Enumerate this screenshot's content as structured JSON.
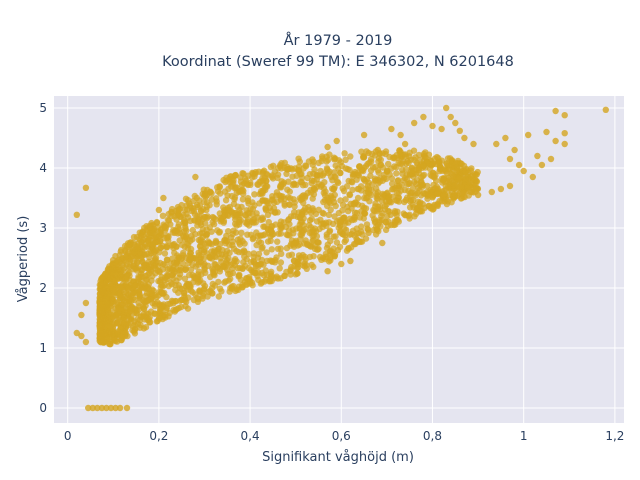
{
  "chart_data": {
    "type": "scatter",
    "title": "År 1979 - 2019",
    "subtitle": "Koordinat (Sweref 99 TM): E 346302, N 6201648",
    "xlabel": "Signifikant våghöjd (m)",
    "ylabel": "Vågperiod (s)",
    "xlim": [
      -0.03,
      1.22
    ],
    "ylim": [
      -0.25,
      5.2
    ],
    "x_ticks": [
      0,
      0.2,
      0.4,
      0.6,
      0.8,
      1,
      1.2
    ],
    "x_tick_labels": [
      "0",
      "0,2",
      "0,4",
      "0,6",
      "0,8",
      "1",
      "1,2"
    ],
    "y_ticks": [
      0,
      1,
      2,
      3,
      4,
      5
    ],
    "y_tick_labels": [
      "0",
      "1",
      "2",
      "3",
      "4",
      "5"
    ],
    "grid": true,
    "marker_color": "#d4a520",
    "plot_background": "#e5e5f0",
    "gridline_color": "#ffffff",
    "cloud_band": {
      "x": [
        0.07,
        0.1,
        0.15,
        0.2,
        0.25,
        0.3,
        0.35,
        0.4,
        0.45,
        0.5,
        0.55,
        0.6,
        0.65,
        0.7,
        0.75,
        0.8,
        0.85,
        0.9
      ],
      "low": [
        1.1,
        1.05,
        1.25,
        1.45,
        1.6,
        1.78,
        1.9,
        2.02,
        2.12,
        2.22,
        2.35,
        2.55,
        2.75,
        2.95,
        3.15,
        3.3,
        3.45,
        3.6
      ],
      "high": [
        2.1,
        2.5,
        2.9,
        3.2,
        3.45,
        3.65,
        3.85,
        3.95,
        4.05,
        4.15,
        4.2,
        4.25,
        4.28,
        4.3,
        4.3,
        4.25,
        4.15,
        3.95
      ]
    },
    "series": [
      {
        "values": [
          [
            0.02,
            3.22
          ],
          [
            0.04,
            3.67
          ],
          [
            0.02,
            1.25
          ],
          [
            0.03,
            1.2
          ],
          [
            0.04,
            1.1
          ],
          [
            0.03,
            1.55
          ],
          [
            0.04,
            1.75
          ],
          [
            0.045,
            0.0
          ],
          [
            0.055,
            0.0
          ],
          [
            0.065,
            0.0
          ],
          [
            0.075,
            0.0
          ],
          [
            0.085,
            0.0
          ],
          [
            0.095,
            0.0
          ],
          [
            0.105,
            0.0
          ],
          [
            0.115,
            0.0
          ],
          [
            0.13,
            0.0
          ],
          [
            0.2,
            3.3
          ],
          [
            0.21,
            3.5
          ],
          [
            0.28,
            3.85
          ],
          [
            0.3,
            2.4
          ],
          [
            0.35,
            2.3
          ],
          [
            0.57,
            2.28
          ],
          [
            0.6,
            2.4
          ],
          [
            0.62,
            2.45
          ],
          [
            0.55,
            2.65
          ],
          [
            0.58,
            2.6
          ],
          [
            0.66,
            2.92
          ],
          [
            0.69,
            2.75
          ],
          [
            0.68,
            3.05
          ],
          [
            0.66,
            4.25
          ],
          [
            0.68,
            4.3
          ],
          [
            0.57,
            4.35
          ],
          [
            0.59,
            4.45
          ],
          [
            0.65,
            4.55
          ],
          [
            0.71,
            4.65
          ],
          [
            0.73,
            4.55
          ],
          [
            0.74,
            4.4
          ],
          [
            0.76,
            4.75
          ],
          [
            0.78,
            4.85
          ],
          [
            0.8,
            4.7
          ],
          [
            0.83,
            5.0
          ],
          [
            0.84,
            4.85
          ],
          [
            0.82,
            4.65
          ],
          [
            0.85,
            4.75
          ],
          [
            0.86,
            4.62
          ],
          [
            0.87,
            4.5
          ],
          [
            0.89,
            4.4
          ],
          [
            0.9,
            3.55
          ],
          [
            0.93,
            3.6
          ],
          [
            0.95,
            3.65
          ],
          [
            0.97,
            3.7
          ],
          [
            0.94,
            4.4
          ],
          [
            0.96,
            4.5
          ],
          [
            0.98,
            4.3
          ],
          [
            0.97,
            4.15
          ],
          [
            0.99,
            4.05
          ],
          [
            1.0,
            3.95
          ],
          [
            1.02,
            3.85
          ],
          [
            1.03,
            4.2
          ],
          [
            1.01,
            4.55
          ],
          [
            1.04,
            4.05
          ],
          [
            1.06,
            4.15
          ],
          [
            1.07,
            4.45
          ],
          [
            1.09,
            4.4
          ],
          [
            1.07,
            4.95
          ],
          [
            1.09,
            4.88
          ],
          [
            1.18,
            4.97
          ],
          [
            1.09,
            4.58
          ],
          [
            1.05,
            4.6
          ]
        ]
      }
    ]
  }
}
